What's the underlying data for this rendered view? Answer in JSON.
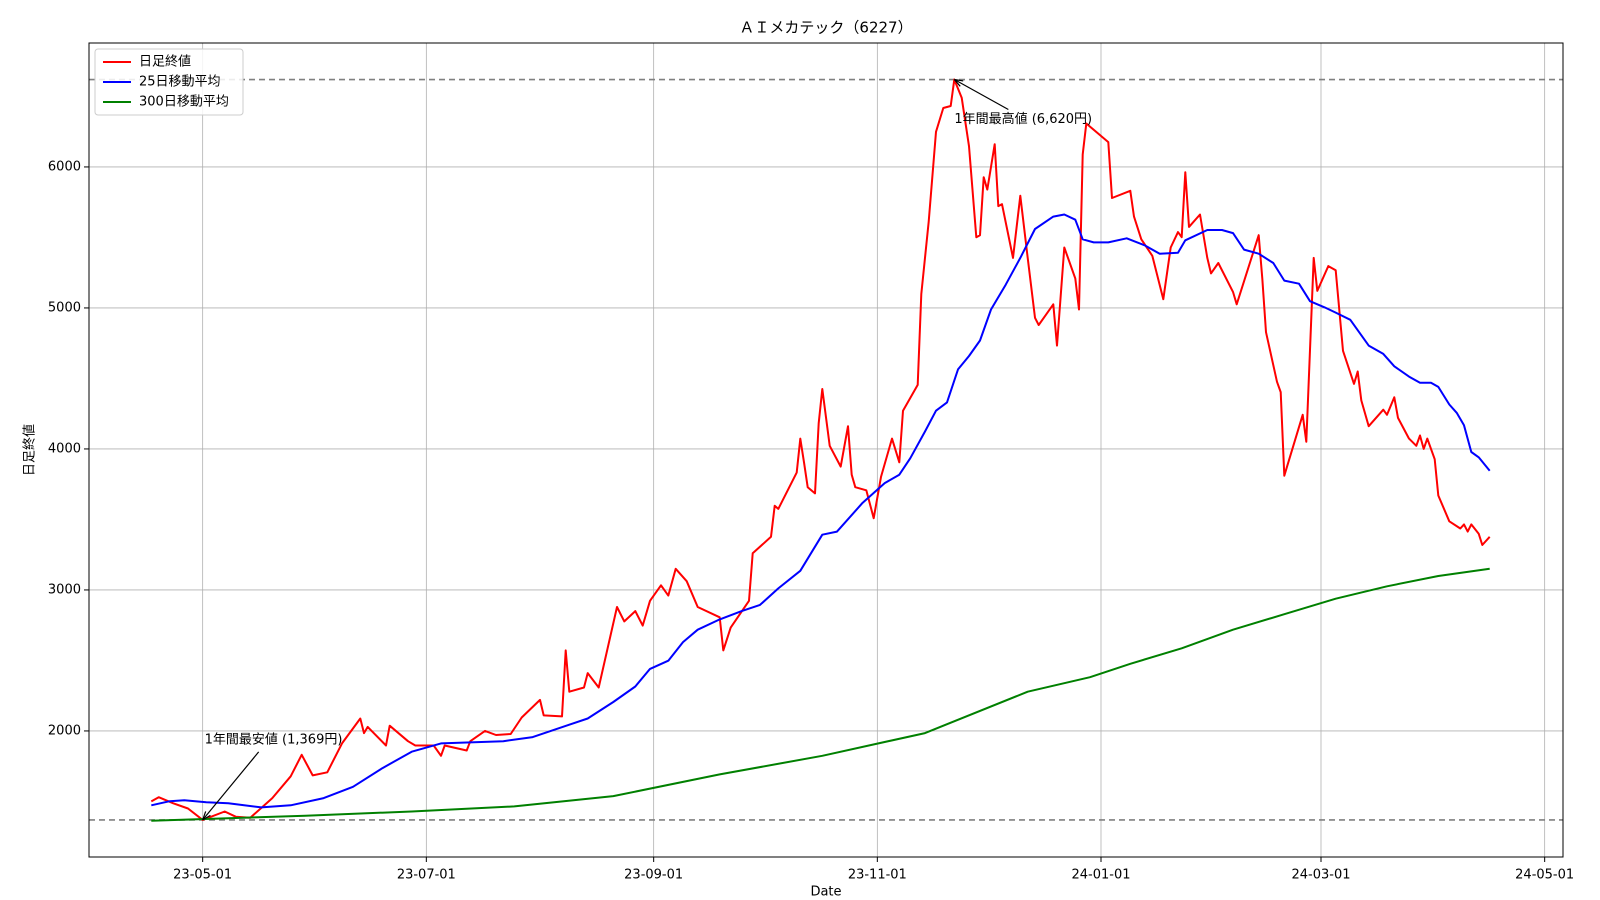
{
  "chart_data": {
    "type": "line",
    "title": "ＡＩメカテック（6227）",
    "x_label": "Date",
    "y_label": "日足終値",
    "xlim": [
      "2023-03-31",
      "2024-05-06"
    ],
    "xticks": [
      {
        "value": "2023-05-01",
        "label": "23-05-01"
      },
      {
        "value": "2023-07-01",
        "label": "23-07-01"
      },
      {
        "value": "2023-09-01",
        "label": "23-09-01"
      },
      {
        "value": "2023-11-01",
        "label": "23-11-01"
      },
      {
        "value": "2024-01-01",
        "label": "24-01-01"
      },
      {
        "value": "2024-03-01",
        "label": "24-03-01"
      },
      {
        "value": "2024-05-01",
        "label": "24-05-01"
      }
    ],
    "ylim": [
      1106,
      6879
    ],
    "yticks": [
      2000,
      3000,
      4000,
      5000,
      6000
    ],
    "grid": true,
    "legend": "upper left",
    "hlines": [
      6620,
      1369
    ],
    "annotations": [
      {
        "text": "1年間最高値 (6,620円)",
        "x": "2023-11-22",
        "y": 6620
      },
      {
        "text": "1年間最安値 (1,369円)",
        "x": "2023-05-01",
        "y": 1369
      }
    ],
    "series": [
      {
        "name": "日足終値",
        "color": "#ff0000",
        "x": [
          "2023-04-17",
          "2023-04-19",
          "2023-04-23",
          "2023-04-27",
          "2023-05-01",
          "2023-05-07",
          "2023-05-10",
          "2023-05-14",
          "2023-05-20",
          "2023-05-25",
          "2023-05-28",
          "2023-05-31",
          "2023-06-04",
          "2023-06-08",
          "2023-06-13",
          "2023-06-14",
          "2023-06-15",
          "2023-06-20",
          "2023-06-21",
          "2023-06-26",
          "2023-06-28",
          "2023-07-03",
          "2023-07-05",
          "2023-07-06",
          "2023-07-12",
          "2023-07-13",
          "2023-07-17",
          "2023-07-20",
          "2023-07-24",
          "2023-07-27",
          "2023-08-01",
          "2023-08-02",
          "2023-08-07",
          "2023-08-08",
          "2023-08-09",
          "2023-08-13",
          "2023-08-14",
          "2023-08-17",
          "2023-08-22",
          "2023-08-24",
          "2023-08-27",
          "2023-08-29",
          "2023-08-31",
          "2023-09-03",
          "2023-09-05",
          "2023-09-07",
          "2023-09-10",
          "2023-09-13",
          "2023-09-19",
          "2023-09-20",
          "2023-09-22",
          "2023-09-27",
          "2023-09-28",
          "2023-10-03",
          "2023-10-04",
          "2023-10-05",
          "2023-10-10",
          "2023-10-11",
          "2023-10-12",
          "2023-10-13",
          "2023-10-15",
          "2023-10-16",
          "2023-10-17",
          "2023-10-19",
          "2023-10-22",
          "2023-10-24",
          "2023-10-25",
          "2023-10-26",
          "2023-10-29",
          "2023-10-31",
          "2023-11-02",
          "2023-11-05",
          "2023-11-07",
          "2023-11-08",
          "2023-11-12",
          "2023-11-13",
          "2023-11-15",
          "2023-11-17",
          "2023-11-19",
          "2023-11-21",
          "2023-11-22",
          "2023-11-24",
          "2023-11-26",
          "2023-11-28",
          "2023-11-29",
          "2023-11-30",
          "2023-12-01",
          "2023-12-03",
          "2023-12-04",
          "2023-12-05",
          "2023-12-08",
          "2023-12-10",
          "2023-12-12",
          "2023-12-14",
          "2023-12-15",
          "2023-12-17",
          "2023-12-19",
          "2023-12-20",
          "2023-12-22",
          "2023-12-25",
          "2023-12-26",
          "2023-12-27",
          "2023-12-28",
          "2024-01-03",
          "2024-01-04",
          "2024-01-09",
          "2024-01-10",
          "2024-01-12",
          "2024-01-15",
          "2024-01-18",
          "2024-01-20",
          "2024-01-22",
          "2024-01-23",
          "2024-01-24",
          "2024-01-25",
          "2024-01-28",
          "2024-01-30",
          "2024-01-31",
          "2024-02-02",
          "2024-02-06",
          "2024-02-07",
          "2024-02-13",
          "2024-02-14",
          "2024-02-15",
          "2024-02-18",
          "2024-02-19",
          "2024-02-20",
          "2024-02-25",
          "2024-02-26",
          "2024-02-28",
          "2024-02-29",
          "2024-03-03",
          "2024-03-05",
          "2024-03-07",
          "2024-03-10",
          "2024-03-11",
          "2024-03-12",
          "2024-03-14",
          "2024-03-18",
          "2024-03-19",
          "2024-03-21",
          "2024-03-22",
          "2024-03-25",
          "2024-03-27",
          "2024-03-28",
          "2024-03-29",
          "2024-03-30",
          "2024-04-01",
          "2024-04-02",
          "2024-04-05",
          "2024-04-08",
          "2024-04-09",
          "2024-04-10",
          "2024-04-11",
          "2024-04-13",
          "2024-04-14",
          "2024-04-16"
        ],
        "values": [
          1500,
          1530,
          1487,
          1450,
          1369,
          1429,
          1392,
          1385,
          1524,
          1678,
          1831,
          1685,
          1707,
          1912,
          2088,
          1985,
          2029,
          1897,
          2037,
          1927,
          1897,
          1897,
          1824,
          1897,
          1861,
          1927,
          2000,
          1971,
          1978,
          2095,
          2220,
          2110,
          2103,
          2571,
          2278,
          2308,
          2410,
          2308,
          2879,
          2777,
          2850,
          2747,
          2923,
          3033,
          2960,
          3150,
          3062,
          2879,
          2806,
          2571,
          2733,
          2923,
          3260,
          3377,
          3597,
          3575,
          3832,
          4073,
          3905,
          3729,
          3685,
          4183,
          4425,
          4022,
          3875,
          4161,
          3817,
          3729,
          3707,
          3509,
          3802,
          4073,
          3905,
          4271,
          4454,
          5099,
          5612,
          6249,
          6418,
          6432,
          6620,
          6491,
          6147,
          5502,
          5516,
          5927,
          5839,
          6161,
          5722,
          5736,
          5355,
          5795,
          5355,
          4930,
          4879,
          4952,
          5026,
          4733,
          5429,
          5209,
          4989,
          6088,
          6308,
          6176,
          5780,
          5831,
          5648,
          5487,
          5370,
          5062,
          5429,
          5538,
          5502,
          5963,
          5575,
          5663,
          5355,
          5245,
          5319,
          5114,
          5026,
          5516,
          5209,
          4828,
          4476,
          4403,
          3810,
          4242,
          4051,
          5355,
          5121,
          5297,
          5267,
          4696,
          4461,
          4549,
          4344,
          4161,
          4278,
          4242,
          4366,
          4220,
          4073,
          4022,
          4095,
          4000,
          4073,
          3927,
          3670,
          3487,
          3436,
          3465,
          3414,
          3465,
          3399,
          3319,
          3377
        ]
      },
      {
        "name": "25日移動平均",
        "color": "#0000ff",
        "x": [
          "2023-04-17",
          "2023-04-22",
          "2023-04-26",
          "2023-05-02",
          "2023-05-08",
          "2023-05-17",
          "2023-05-25",
          "2023-06-03",
          "2023-06-11",
          "2023-06-19",
          "2023-06-27",
          "2023-07-05",
          "2023-07-22",
          "2023-07-30",
          "2023-08-09",
          "2023-08-14",
          "2023-08-21",
          "2023-08-27",
          "2023-08-31",
          "2023-09-05",
          "2023-09-09",
          "2023-09-13",
          "2023-09-19",
          "2023-09-25",
          "2023-09-30",
          "2023-10-05",
          "2023-10-11",
          "2023-10-17",
          "2023-10-21",
          "2023-10-28",
          "2023-11-03",
          "2023-11-07",
          "2023-11-10",
          "2023-11-14",
          "2023-11-17",
          "2023-11-20",
          "2023-11-23",
          "2023-11-26",
          "2023-11-29",
          "2023-12-02",
          "2023-12-06",
          "2023-12-10",
          "2023-12-14",
          "2023-12-19",
          "2023-12-22",
          "2023-12-25",
          "2023-12-27",
          "2023-12-30",
          "2024-01-03",
          "2024-01-08",
          "2024-01-13",
          "2024-01-17",
          "2024-01-22",
          "2024-01-24",
          "2024-01-30",
          "2024-02-03",
          "2024-02-06",
          "2024-02-09",
          "2024-02-13",
          "2024-02-17",
          "2024-02-20",
          "2024-02-24",
          "2024-02-27",
          "2024-03-02",
          "2024-03-05",
          "2024-03-09",
          "2024-03-14",
          "2024-03-18",
          "2024-03-21",
          "2024-03-25",
          "2024-03-28",
          "2024-03-31",
          "2024-04-02",
          "2024-04-05",
          "2024-04-07",
          "2024-04-09",
          "2024-04-11",
          "2024-04-13",
          "2024-04-16"
        ],
        "values": [
          1473,
          1502,
          1509,
          1494,
          1487,
          1458,
          1473,
          1524,
          1604,
          1736,
          1853,
          1912,
          1927,
          1956,
          2044,
          2088,
          2205,
          2315,
          2440,
          2498,
          2630,
          2718,
          2791,
          2850,
          2894,
          3011,
          3136,
          3392,
          3414,
          3619,
          3758,
          3817,
          3934,
          4124,
          4271,
          4330,
          4564,
          4659,
          4769,
          4989,
          5165,
          5355,
          5560,
          5648,
          5663,
          5626,
          5487,
          5465,
          5465,
          5494,
          5443,
          5385,
          5392,
          5480,
          5553,
          5553,
          5531,
          5414,
          5385,
          5319,
          5194,
          5172,
          5048,
          5004,
          4967,
          4916,
          4733,
          4674,
          4586,
          4513,
          4469,
          4469,
          4440,
          4315,
          4256,
          4168,
          3978,
          3941,
          3846
        ]
      },
      {
        "name": "300日移動平均",
        "color": "#008000",
        "x": [
          "2023-04-17",
          "2023-05-29",
          "2023-06-27",
          "2023-07-25",
          "2023-08-21",
          "2023-09-19",
          "2023-10-17",
          "2023-11-14",
          "2023-12-12",
          "2023-12-29",
          "2024-01-09",
          "2024-01-23",
          "2024-02-06",
          "2024-02-20",
          "2024-03-05",
          "2024-03-19",
          "2024-04-02",
          "2024-04-16"
        ],
        "values": [
          1363,
          1399,
          1429,
          1465,
          1538,
          1692,
          1824,
          1985,
          2278,
          2381,
          2476,
          2586,
          2718,
          2828,
          2938,
          3026,
          3099,
          3150
        ]
      }
    ]
  }
}
